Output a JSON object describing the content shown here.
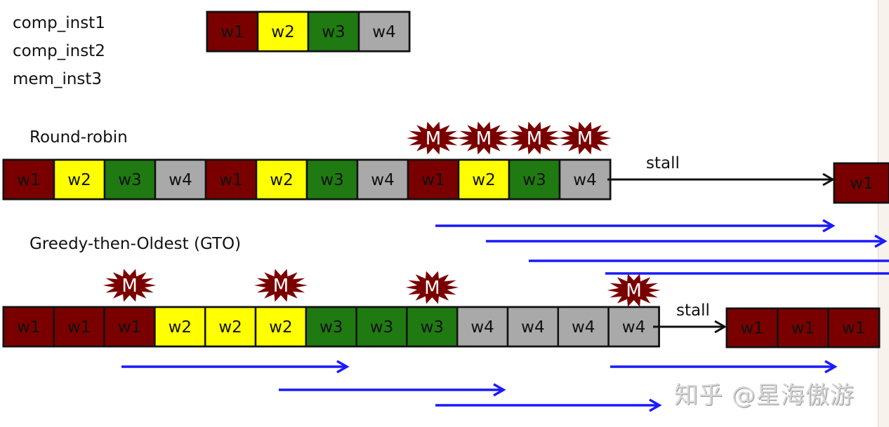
{
  "colors": {
    "w1": "#7a0000",
    "w2": "#ffff00",
    "w3": "#1f7a12",
    "w4": "#a9a9a9",
    "miss": "#7a0000",
    "arrow_blue": "#1a1aff"
  },
  "legend": {
    "instructions": [
      "comp_inst1",
      "comp_inst2",
      "mem_inst3"
    ],
    "warps": [
      "w1",
      "w2",
      "w3",
      "w4"
    ]
  },
  "round_robin": {
    "title": "Round-robin",
    "cells": [
      "w1",
      "w2",
      "w3",
      "w4",
      "w1",
      "w2",
      "w3",
      "w4",
      "w1",
      "w2",
      "w3",
      "w4"
    ],
    "miss_label": "M",
    "miss_cells": [
      8,
      9,
      10,
      11
    ],
    "stall_label": "stall",
    "after_stall": [
      "w1"
    ]
  },
  "gto": {
    "title": "Greedy-then-Oldest (GTO)",
    "cells": [
      "w1",
      "w1",
      "w1",
      "w2",
      "w2",
      "w2",
      "w3",
      "w3",
      "w3",
      "w4",
      "w4",
      "w4",
      "w4"
    ],
    "miss_label": "M",
    "miss_cells": [
      2,
      5,
      8,
      12
    ],
    "stall_label": "stall",
    "after_stall": [
      "w1",
      "w1",
      "w1"
    ]
  },
  "watermark": "知乎 @星海傲游"
}
